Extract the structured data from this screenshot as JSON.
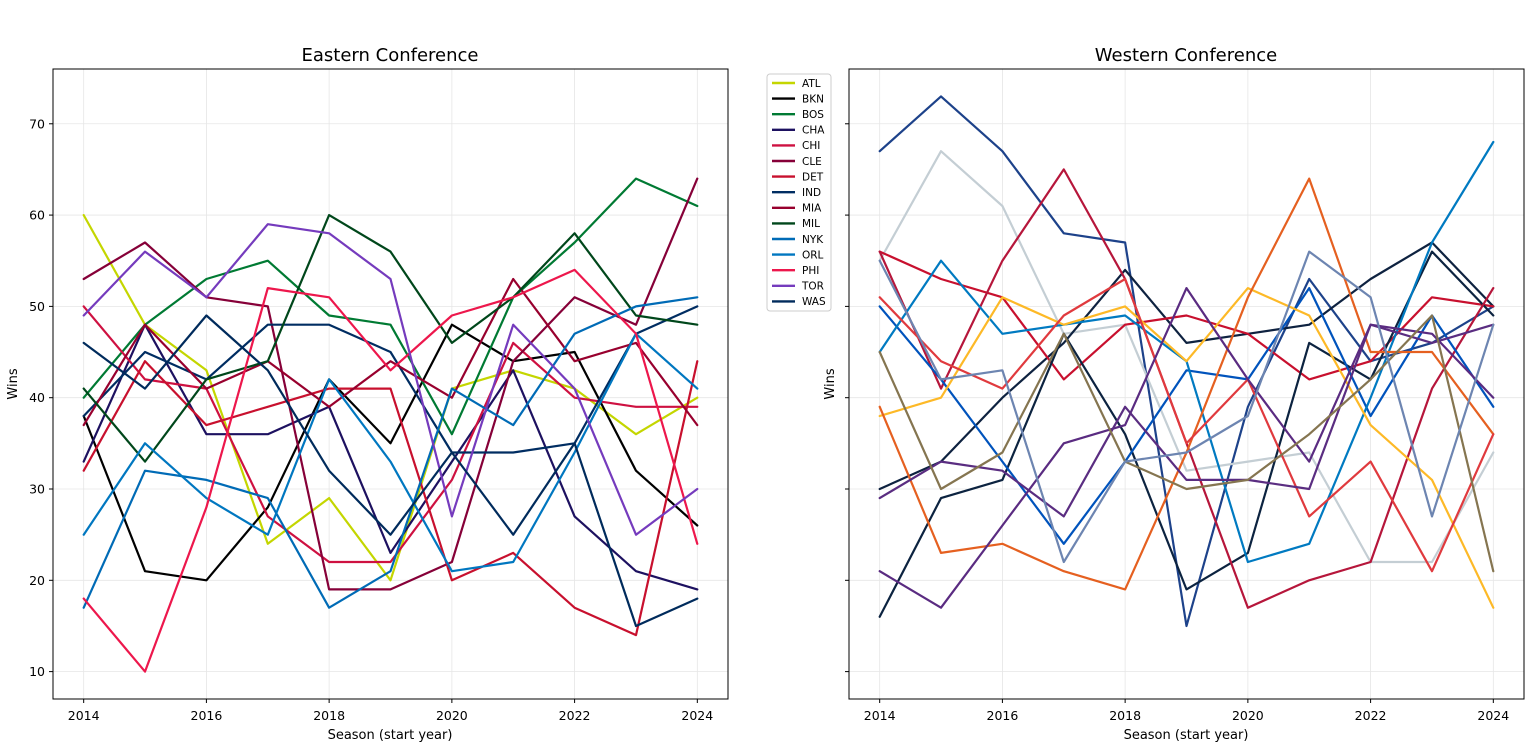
{
  "chart_data": [
    {
      "type": "line",
      "title": "Eastern Conference",
      "xlabel": "Season (start year)",
      "ylabel": "Wins",
      "xlim": [
        2013.5,
        2024.5
      ],
      "ylim": [
        7,
        76
      ],
      "xticks": [
        2014,
        2016,
        2018,
        2020,
        2022,
        2024
      ],
      "yticks": [
        10,
        20,
        30,
        40,
        50,
        60,
        70
      ],
      "grid": true,
      "legend": "outside-right",
      "x": [
        2014,
        2015,
        2016,
        2017,
        2018,
        2019,
        2020,
        2021,
        2022,
        2023,
        2024
      ],
      "series": [
        {
          "name": "ATL",
          "color": "#c4d600",
          "values": [
            60,
            48,
            43,
            24,
            29,
            20,
            41,
            43,
            41,
            36,
            40
          ]
        },
        {
          "name": "BKN",
          "color": "#000000",
          "values": [
            38,
            21,
            20,
            28,
            42,
            35,
            48,
            44,
            45,
            32,
            26
          ]
        },
        {
          "name": "BOS",
          "color": "#007a33",
          "values": [
            40,
            48,
            53,
            55,
            49,
            48,
            36,
            51,
            57,
            64,
            61
          ]
        },
        {
          "name": "CHA",
          "color": "#1d1160",
          "values": [
            33,
            48,
            36,
            36,
            39,
            23,
            33,
            43,
            27,
            21,
            19
          ]
        },
        {
          "name": "CHI",
          "color": "#ce1141",
          "values": [
            50,
            42,
            41,
            27,
            22,
            22,
            31,
            46,
            40,
            39,
            39
          ]
        },
        {
          "name": "CLE",
          "color": "#860038",
          "values": [
            53,
            57,
            51,
            50,
            19,
            19,
            22,
            44,
            51,
            48,
            64
          ]
        },
        {
          "name": "DET",
          "color": "#c8102e",
          "values": [
            32,
            44,
            37,
            39,
            41,
            41,
            20,
            23,
            17,
            14,
            44
          ]
        },
        {
          "name": "IND",
          "color": "#002d62",
          "values": [
            38,
            45,
            42,
            48,
            48,
            45,
            34,
            34,
            35,
            47,
            50
          ]
        },
        {
          "name": "MIA",
          "color": "#98002e",
          "values": [
            37,
            48,
            41,
            44,
            39,
            44,
            40,
            53,
            44,
            46,
            37
          ]
        },
        {
          "name": "MIL",
          "color": "#00471b",
          "values": [
            41,
            33,
            42,
            44,
            60,
            56,
            46,
            51,
            58,
            49,
            48
          ]
        },
        {
          "name": "NYK",
          "color": "#006bb6",
          "values": [
            17,
            32,
            31,
            29,
            17,
            21,
            41,
            37,
            47,
            50,
            51
          ]
        },
        {
          "name": "ORL",
          "color": "#0077c0",
          "values": [
            25,
            35,
            29,
            25,
            42,
            33,
            21,
            22,
            34,
            47,
            41
          ]
        },
        {
          "name": "PHI",
          "color": "#ed174c",
          "values": [
            18,
            10,
            28,
            52,
            51,
            43,
            49,
            51,
            54,
            47,
            24
          ]
        },
        {
          "name": "TOR",
          "color": "#753bbd",
          "values": [
            49,
            56,
            51,
            59,
            58,
            53,
            27,
            48,
            41,
            25,
            30
          ]
        },
        {
          "name": "WAS",
          "color": "#002b5c",
          "values": [
            46,
            41,
            49,
            43,
            32,
            25,
            34,
            25,
            35,
            15,
            18
          ]
        }
      ]
    },
    {
      "type": "line",
      "title": "Western Conference",
      "xlabel": "Season (start year)",
      "ylabel": "Wins",
      "xlim": [
        2013.5,
        2024.5
      ],
      "ylim": [
        7,
        76
      ],
      "xticks": [
        2014,
        2016,
        2018,
        2020,
        2022,
        2024
      ],
      "grid": true,
      "x": [
        2014,
        2015,
        2016,
        2017,
        2018,
        2019,
        2020,
        2021,
        2022,
        2023,
        2024
      ],
      "series": [
        {
          "color": "#1d428a",
          "values": [
            67,
            73,
            67,
            58,
            57,
            15,
            39,
            53,
            44,
            46,
            50
          ]
        },
        {
          "color": "#c4ced4",
          "values": [
            55,
            67,
            61,
            47,
            48,
            32,
            33,
            34,
            22,
            22,
            34
          ]
        },
        {
          "color": "#0e2240",
          "values": [
            30,
            33,
            40,
            46,
            54,
            46,
            47,
            48,
            53,
            57,
            50
          ]
        },
        {
          "color": "#c8102e",
          "values": [
            56,
            53,
            51,
            42,
            48,
            49,
            47,
            42,
            44,
            51,
            50
          ]
        },
        {
          "color": "#0c2340",
          "values": [
            16,
            29,
            31,
            47,
            36,
            19,
            23,
            46,
            42,
            56,
            49
          ]
        },
        {
          "color": "#b6163b",
          "values": [
            56,
            41,
            55,
            65,
            53,
            35,
            17,
            20,
            22,
            41,
            52
          ]
        },
        {
          "color": "#0053bc",
          "values": [
            50,
            42,
            33,
            24,
            33,
            43,
            42,
            52,
            38,
            49,
            39
          ]
        },
        {
          "color": "#007ac1",
          "values": [
            45,
            55,
            47,
            48,
            49,
            44,
            22,
            24,
            40,
            57,
            68
          ]
        },
        {
          "color": "#fdb927",
          "values": [
            38,
            40,
            51,
            48,
            50,
            44,
            52,
            49,
            37,
            31,
            17
          ]
        },
        {
          "color": "#e56020",
          "values": [
            39,
            23,
            24,
            21,
            19,
            34,
            51,
            64,
            45,
            45,
            36
          ]
        },
        {
          "color": "#e03a3e",
          "values": [
            51,
            44,
            41,
            49,
            53,
            35,
            42,
            27,
            33,
            21,
            36
          ]
        },
        {
          "color": "#5a2d81",
          "values": [
            29,
            33,
            32,
            27,
            39,
            31,
            31,
            30,
            48,
            46,
            48
          ]
        },
        {
          "color": "#5a2b81",
          "values": [
            21,
            17,
            26,
            35,
            37,
            52,
            42,
            33,
            48,
            47,
            40
          ]
        },
        {
          "color": "#857550",
          "values": [
            45,
            30,
            34,
            47,
            33,
            30,
            31,
            36,
            42,
            49,
            21
          ]
        },
        {
          "color": "#6d85b1",
          "values": [
            55,
            42,
            43,
            22,
            33,
            34,
            38,
            56,
            51,
            27,
            48
          ]
        }
      ]
    }
  ]
}
